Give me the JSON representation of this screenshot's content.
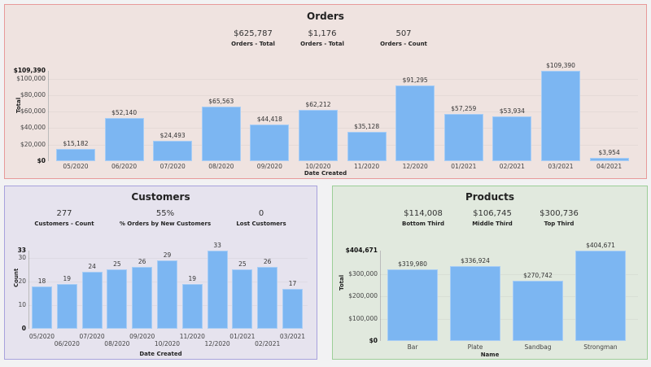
{
  "orders": {
    "title": "Orders",
    "kpis": [
      {
        "value": "$625,787",
        "label": "Orders - Total"
      },
      {
        "value": "$1,176",
        "label": "Orders - Total"
      },
      {
        "value": "507",
        "label": "Orders - Count"
      }
    ],
    "chart_data": {
      "type": "bar",
      "xlabel": "Date Created",
      "ylabel": "Total",
      "categories": [
        "05/2020",
        "06/2020",
        "07/2020",
        "08/2020",
        "09/2020",
        "10/2020",
        "11/2020",
        "12/2020",
        "01/2021",
        "02/2021",
        "03/2021",
        "04/2021"
      ],
      "values": [
        15182,
        52140,
        24493,
        65563,
        44418,
        62212,
        35128,
        91295,
        57259,
        53934,
        109390,
        3954
      ],
      "data_labels": [
        "$15,182",
        "$52,140",
        "$24,493",
        "$65,563",
        "$44,418",
        "$62,212",
        "$35,128",
        "$91,295",
        "$57,259",
        "$53,934",
        "$109,390",
        "$3,954"
      ],
      "ylim": [
        0,
        109390
      ],
      "yticks": [
        0,
        20000,
        40000,
        60000,
        80000,
        100000,
        109390
      ],
      "ytick_labels": [
        "$0",
        "$20,000",
        "$40,000",
        "$60,000",
        "$80,000",
        "$100,000",
        "$109,390"
      ],
      "bar_color": "#7cb6f2"
    }
  },
  "customers": {
    "title": "Customers",
    "kpis": [
      {
        "value": "277",
        "label": "Customers - Count"
      },
      {
        "value": "55%",
        "label": "% Orders by New Customers"
      },
      {
        "value": "0",
        "label": "Lost Customers"
      }
    ],
    "chart_data": {
      "type": "bar",
      "xlabel": "Date Created",
      "ylabel": "Count",
      "categories": [
        "05/2020",
        "06/2020",
        "07/2020",
        "08/2020",
        "09/2020",
        "10/2020",
        "11/2020",
        "12/2020",
        "01/2021",
        "02/2021",
        "03/2021"
      ],
      "values": [
        18,
        19,
        24,
        25,
        26,
        29,
        19,
        33,
        25,
        26,
        17
      ],
      "data_labels": [
        "18",
        "19",
        "24",
        "25",
        "26",
        "29",
        "19",
        "33",
        "25",
        "26",
        "17"
      ],
      "ylim": [
        0,
        33
      ],
      "yticks": [
        0,
        10,
        20,
        30,
        33
      ],
      "ytick_labels": [
        "0",
        "10",
        "20",
        "30",
        "33"
      ],
      "bar_color": "#7cb6f2"
    }
  },
  "products": {
    "title": "Products",
    "kpis": [
      {
        "value": "$114,008",
        "label": "Bottom Third"
      },
      {
        "value": "$106,745",
        "label": "Middle Third"
      },
      {
        "value": "$300,736",
        "label": "Top Third"
      }
    ],
    "chart_data": {
      "type": "bar",
      "xlabel": "Name",
      "ylabel": "Total",
      "categories": [
        "Bar",
        "Plate",
        "Sandbag",
        "Strongman"
      ],
      "values": [
        319980,
        336924,
        270742,
        404671
      ],
      "data_labels": [
        "$319,980",
        "$336,924",
        "$270,742",
        "$404,671"
      ],
      "ylim": [
        0,
        404671
      ],
      "yticks": [
        0,
        100000,
        200000,
        300000,
        404671
      ],
      "ytick_labels": [
        "$0",
        "$100,000",
        "$200,000",
        "$300,000",
        "$404,671"
      ],
      "bar_color": "#7cb6f2"
    }
  }
}
